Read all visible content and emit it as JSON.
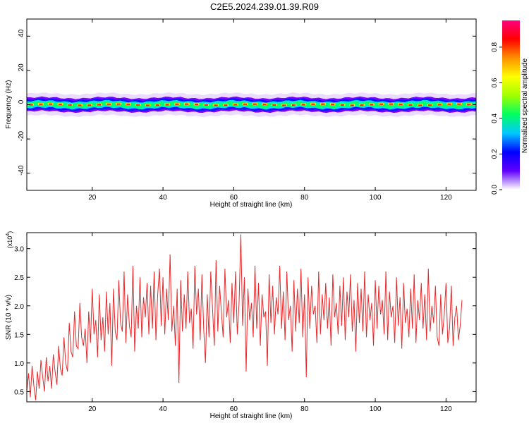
{
  "figure": {
    "title": "C2E5.2024.239.01.39.R09"
  },
  "chart_data": [
    {
      "type": "heatmap",
      "name": "spectrogram",
      "xlabel": "Height of straight line (km)",
      "ylabel": "Frequency (Hz)",
      "xlim": [
        1.5,
        128.5
      ],
      "ylim": [
        -50,
        50
      ],
      "xticks": [
        20,
        40,
        60,
        80,
        100,
        120
      ],
      "yticks": [
        -40,
        -20,
        0,
        20,
        40
      ],
      "band_center_hz": 0,
      "band_halfwidth_hz": 4,
      "colorbar": {
        "label": "Normalized spectral amplitude",
        "range": [
          0,
          0.95
        ],
        "ticks": [
          0.0,
          0.2,
          0.4,
          0.6,
          0.8
        ],
        "colormap": [
          "#ffffff",
          "#6000ff",
          "#0000ff",
          "#00c8ff",
          "#00ff60",
          "#a0ff00",
          "#ffff00",
          "#ff9000",
          "#ff0000",
          "#ff0080"
        ]
      }
    },
    {
      "type": "line",
      "name": "snr",
      "xlabel": "Height of straight line (km)",
      "ylabel": "SNR (10 * v/v)",
      "y_multiplier": "(x10",
      "y_multiplier_exp": "4",
      "y_multiplier_close": ")",
      "xlim": [
        1.5,
        128.5
      ],
      "ylim": [
        0.32,
        3.28
      ],
      "xticks": [
        20,
        40,
        60,
        80,
        100,
        120
      ],
      "yticks": [
        0.5,
        1.0,
        1.5,
        2.0,
        2.5,
        3.0
      ],
      "series": [
        {
          "name": "SNR",
          "color": "#e8282a",
          "x_start": 1.5,
          "x_step": 0.5,
          "values": [
            0.52,
            0.82,
            0.4,
            0.95,
            0.6,
            0.35,
            0.85,
            0.55,
            1.05,
            0.75,
            0.5,
            1.1,
            0.68,
            0.95,
            0.55,
            1.15,
            0.85,
            0.62,
            1.3,
            0.9,
            0.78,
            1.45,
            1.0,
            0.85,
            1.7,
            1.2,
            1.1,
            1.9,
            1.3,
            1.25,
            2.05,
            1.45,
            1.3,
            1.6,
            1.0,
            1.9,
            1.35,
            2.3,
            1.5,
            1.75,
            1.1,
            2.2,
            1.4,
            1.8,
            1.2,
            2.25,
            1.5,
            2.05,
            0.95,
            2.3,
            1.55,
            1.4,
            2.45,
            1.7,
            1.55,
            2.6,
            1.35,
            2.2,
            1.65,
            1.45,
            2.7,
            1.2,
            2.0,
            1.6,
            2.5,
            1.45,
            2.15,
            1.8,
            2.4,
            1.5,
            2.35,
            1.6,
            2.6,
            1.4,
            2.2,
            2.65,
            1.65,
            2.5,
            1.5,
            2.3,
            1.75,
            2.9,
            1.55,
            2.0,
            1.3,
            2.3,
            0.65,
            2.45,
            1.55,
            2.2,
            1.6,
            2.6,
            1.7,
            1.95,
            1.25,
            2.7,
            1.85,
            2.3,
            1.4,
            2.55,
            1.6,
            1.0,
            2.2,
            1.45,
            2.6,
            1.95,
            1.3,
            2.8,
            1.55,
            2.35,
            1.9,
            1.45,
            2.65,
            1.8,
            2.1,
            1.35,
            2.4,
            1.7,
            2.6,
            1.5,
            2.05,
            3.25,
            1.65,
            2.5,
            0.85,
            2.3,
            1.75,
            2.05,
            1.45,
            2.7,
            1.6,
            2.4,
            1.3,
            2.2,
            1.8,
            1.9,
            0.95,
            2.55,
            1.7,
            2.35,
            1.5,
            2.15,
            1.85,
            2.7,
            1.6,
            2.25,
            1.4,
            2.6,
            1.75,
            2.0,
            1.2,
            2.45,
            1.55,
            2.3,
            1.7,
            2.65,
            1.45,
            2.2,
            0.75,
            2.5,
            1.6,
            2.35,
            1.85,
            2.0,
            1.35,
            2.6,
            1.5,
            2.2,
            1.75,
            2.4,
            1.6,
            2.15,
            1.3,
            2.55,
            1.8,
            2.05,
            1.5,
            2.35,
            1.65,
            2.5,
            1.4,
            2.25,
            1.8,
            2.55,
            1.55,
            2.1,
            1.2,
            2.4,
            1.7,
            2.3,
            1.55,
            2.6,
            1.45,
            2.2,
            1.75,
            2.05,
            1.3,
            2.45,
            1.6,
            2.35,
            1.85,
            2.1,
            1.5,
            2.6,
            1.4,
            2.25,
            1.8,
            2.0,
            1.35,
            2.5,
            1.65,
            2.15,
            1.25,
            2.4,
            1.7,
            1.95,
            1.45,
            2.3,
            1.6,
            2.55,
            1.35,
            2.1,
            1.75,
            2.4,
            1.6,
            2.2,
            1.4,
            2.65,
            1.55,
            2.0,
            1.7,
            2.35,
            1.45,
            1.3,
            2.2,
            1.5,
            1.85,
            2.4,
            1.35,
            1.6,
            2.35,
            1.3,
            1.8,
            2.0,
            1.4,
            1.65,
            2.1
          ]
        }
      ]
    }
  ]
}
